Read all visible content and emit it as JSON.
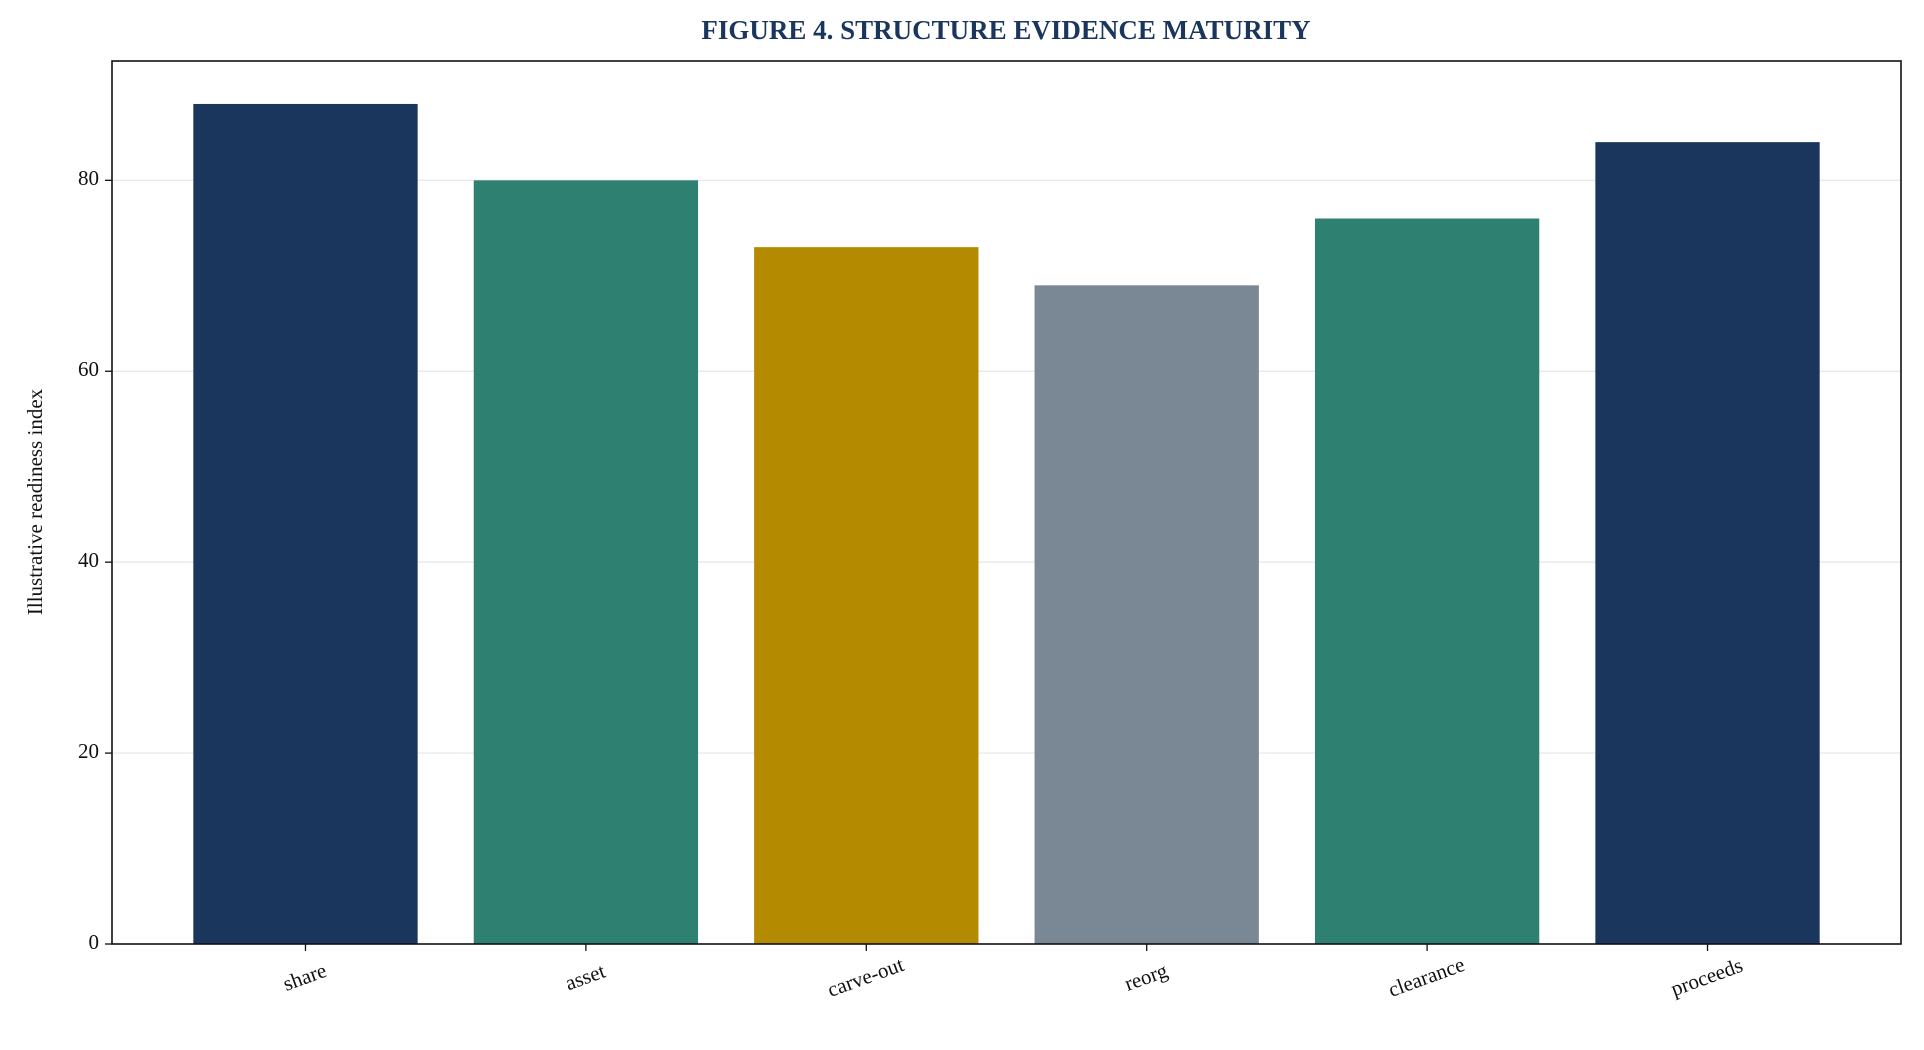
{
  "chart_data": {
    "type": "bar",
    "title": "FIGURE 4. STRUCTURE EVIDENCE MATURITY",
    "y_label": "Illustrative readiness index",
    "categories": [
      "share",
      "asset",
      "carve-out",
      "reorg",
      "clearance",
      "proceeds"
    ],
    "values": [
      88,
      80,
      73,
      69,
      76,
      84
    ],
    "colors": [
      "#1a365d",
      "#2e8070",
      "#b38a00",
      "#7a8795",
      "#2e8070",
      "#1a365d"
    ],
    "ylim": [
      0,
      92.5
    ],
    "yticks": [
      0,
      20,
      40,
      60,
      80
    ],
    "grid": true
  }
}
